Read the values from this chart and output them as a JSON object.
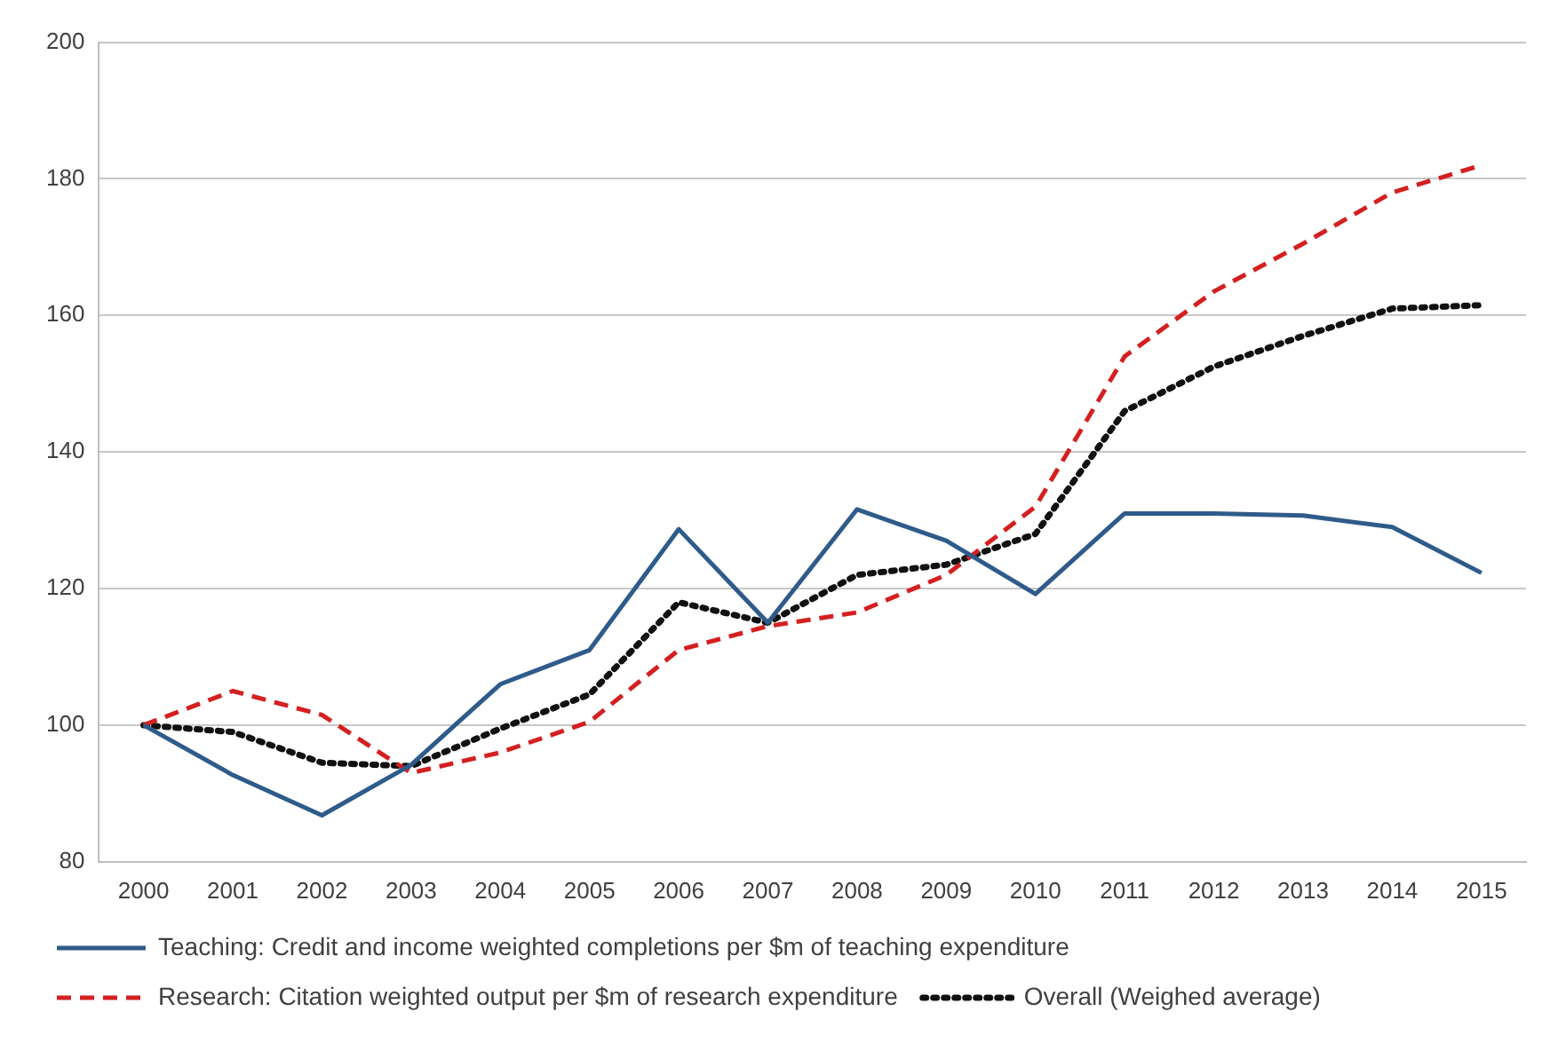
{
  "chart_data": {
    "type": "line",
    "categories": [
      "2000",
      "2001",
      "2002",
      "2003",
      "2004",
      "2005",
      "2006",
      "2007",
      "2008",
      "2009",
      "2010",
      "2011",
      "2012",
      "2013",
      "2014",
      "2015"
    ],
    "series": [
      {
        "name": "Teaching: Credit and income weighted completions per $m of teaching expenditure",
        "color": "#2f5b8a",
        "line_style": "solid",
        "values": [
          100,
          92.7,
          86.8,
          94.2,
          106,
          111,
          128.7,
          115,
          131.6,
          127,
          119.2,
          131,
          131,
          130.7,
          129,
          122.3
        ]
      },
      {
        "name": "Research: Citation weighted output per $m of research expenditure",
        "color": "#d42020",
        "line_style": "dashed",
        "values": [
          100,
          105,
          101.5,
          93,
          96,
          100.5,
          111,
          114.5,
          116.5,
          122,
          132,
          154,
          163.5,
          170.5,
          178,
          182
        ]
      },
      {
        "name": "Overall (Weighed average)",
        "color": "#111111",
        "line_style": "dotted",
        "values": [
          100,
          99,
          94.5,
          94,
          99.5,
          104.5,
          118,
          115,
          122,
          123.5,
          128,
          146,
          152.5,
          157,
          161,
          161.5
        ]
      }
    ],
    "ylim": [
      80,
      200
    ],
    "yticks": [
      80,
      100,
      120,
      140,
      160,
      180,
      200
    ],
    "grid": "y",
    "legend": "bottom",
    "marker": "none"
  }
}
